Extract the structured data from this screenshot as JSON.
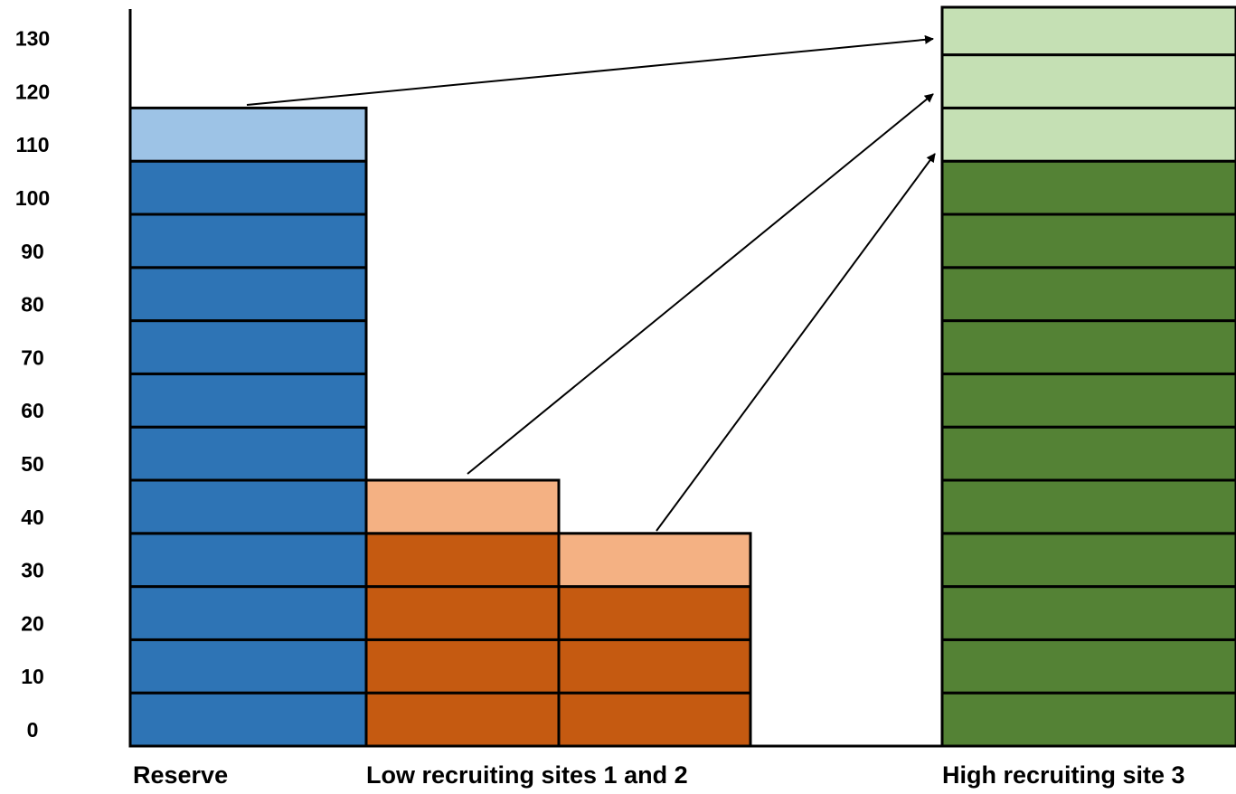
{
  "chart_data": {
    "type": "bar",
    "subtype": "stacked-block-diagram",
    "y_ticks": [
      0,
      10,
      20,
      30,
      40,
      50,
      60,
      70,
      80,
      90,
      100,
      110,
      120,
      130
    ],
    "ylim": [
      0,
      138
    ],
    "grid": false,
    "legend": "none",
    "category_labels": [
      "Reserve",
      "Low recruiting sites 1 and 2",
      "High recruiting site 3"
    ],
    "columns": [
      {
        "id": "reserve",
        "group": "Reserve",
        "blocks": [
          {
            "from": 0,
            "to": 10,
            "color": "#2e74b5"
          },
          {
            "from": 10,
            "to": 20,
            "color": "#2e74b5"
          },
          {
            "from": 20,
            "to": 30,
            "color": "#2e74b5"
          },
          {
            "from": 30,
            "to": 40,
            "color": "#2e74b5"
          },
          {
            "from": 40,
            "to": 50,
            "color": "#2e74b5"
          },
          {
            "from": 50,
            "to": 60,
            "color": "#2e74b5"
          },
          {
            "from": 60,
            "to": 70,
            "color": "#2e74b5"
          },
          {
            "from": 70,
            "to": 80,
            "color": "#2e74b5"
          },
          {
            "from": 80,
            "to": 90,
            "color": "#2e74b5"
          },
          {
            "from": 90,
            "to": 100,
            "color": "#2e74b5"
          },
          {
            "from": 100,
            "to": 110,
            "color": "#2e74b5"
          },
          {
            "from": 110,
            "to": 120,
            "color": "#9dc3e6"
          }
        ]
      },
      {
        "id": "site1",
        "group": "Low recruiting sites 1 and 2",
        "blocks": [
          {
            "from": 0,
            "to": 10,
            "color": "#c55a11"
          },
          {
            "from": 10,
            "to": 20,
            "color": "#c55a11"
          },
          {
            "from": 20,
            "to": 30,
            "color": "#c55a11"
          },
          {
            "from": 30,
            "to": 40,
            "color": "#c55a11"
          },
          {
            "from": 40,
            "to": 50,
            "color": "#f4b183"
          }
        ]
      },
      {
        "id": "site2",
        "group": "Low recruiting sites 1 and 2",
        "blocks": [
          {
            "from": 0,
            "to": 10,
            "color": "#c55a11"
          },
          {
            "from": 10,
            "to": 20,
            "color": "#c55a11"
          },
          {
            "from": 20,
            "to": 30,
            "color": "#c55a11"
          },
          {
            "from": 30,
            "to": 40,
            "color": "#f4b183"
          }
        ]
      },
      {
        "id": "site3",
        "group": "High recruiting site 3",
        "blocks": [
          {
            "from": 0,
            "to": 10,
            "color": "#548235"
          },
          {
            "from": 10,
            "to": 20,
            "color": "#548235"
          },
          {
            "from": 20,
            "to": 30,
            "color": "#548235"
          },
          {
            "from": 30,
            "to": 40,
            "color": "#548235"
          },
          {
            "from": 40,
            "to": 50,
            "color": "#548235"
          },
          {
            "from": 50,
            "to": 60,
            "color": "#548235"
          },
          {
            "from": 60,
            "to": 70,
            "color": "#548235"
          },
          {
            "from": 70,
            "to": 80,
            "color": "#548235"
          },
          {
            "from": 80,
            "to": 90,
            "color": "#548235"
          },
          {
            "from": 90,
            "to": 100,
            "color": "#548235"
          },
          {
            "from": 100,
            "to": 110,
            "color": "#548235"
          },
          {
            "from": 110,
            "to": 120,
            "color": "#c5e0b4"
          },
          {
            "from": 120,
            "to": 130,
            "color": "#c5e0b4"
          },
          {
            "from": 130,
            "to": 140,
            "color": "#c5e0b4"
          }
        ]
      }
    ],
    "arrows": [
      {
        "from_column": "reserve",
        "from_block": 11,
        "to_column": "site3",
        "to_block": 13
      },
      {
        "from_column": "site1",
        "from_block": 4,
        "to_column": "site3",
        "to_block": 12
      },
      {
        "from_column": "site2",
        "from_block": 3,
        "to_column": "site3",
        "to_block": 11
      }
    ]
  }
}
